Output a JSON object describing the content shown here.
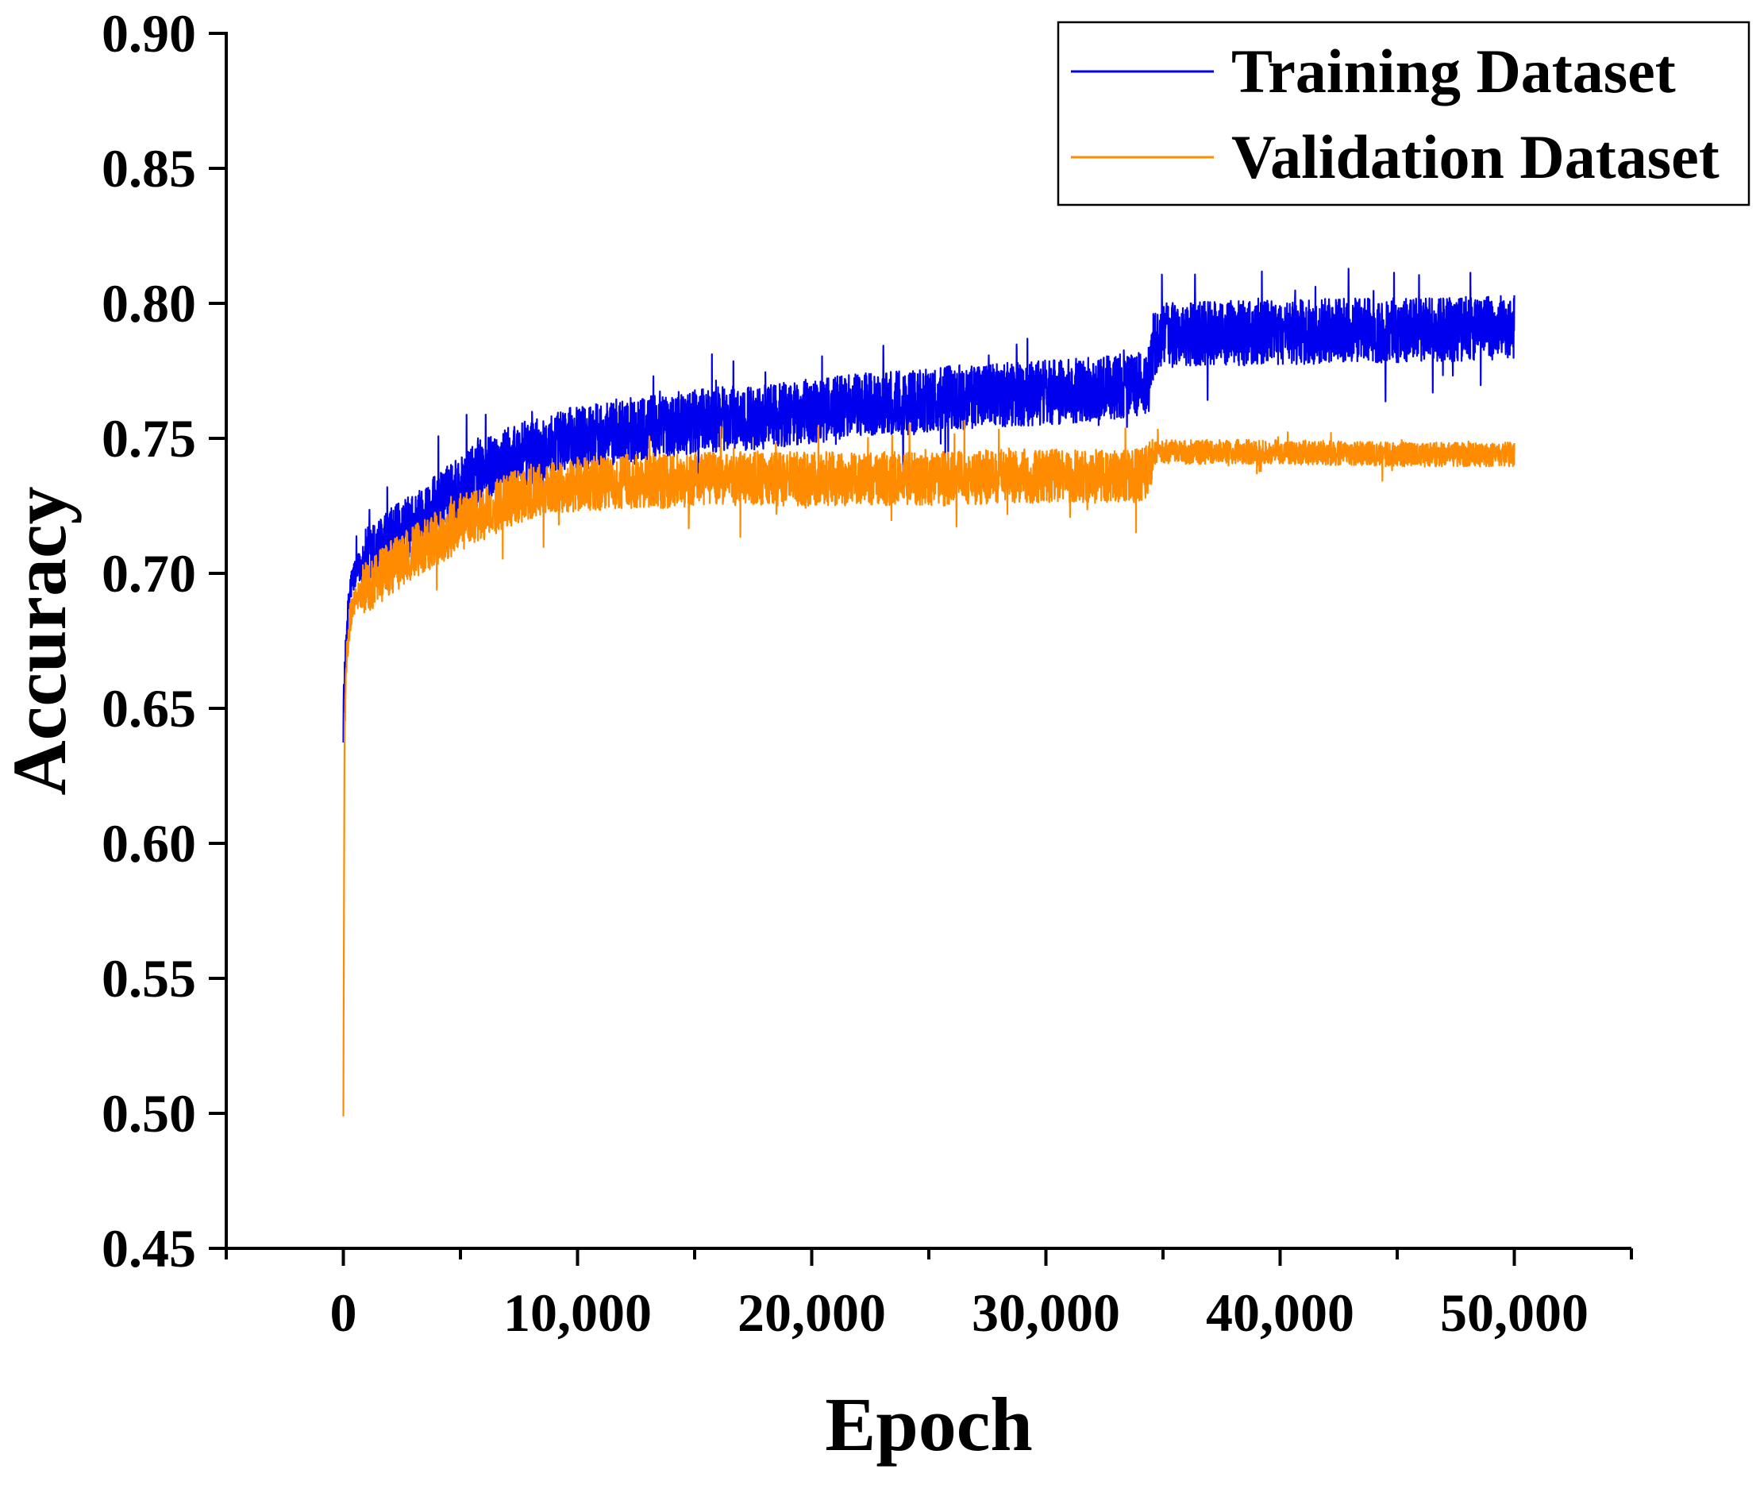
{
  "chart_data": {
    "type": "line",
    "title": "",
    "xlabel": "Epoch",
    "ylabel": "Accuracy",
    "xlim": [
      -5000,
      55000
    ],
    "ylim": [
      0.45,
      0.9
    ],
    "x_ticks": [
      0,
      10000,
      20000,
      30000,
      40000,
      50000
    ],
    "x_tick_labels": [
      "0",
      "10,000",
      "20,000",
      "30,000",
      "40,000",
      "50,000"
    ],
    "x_minor_ticks": [
      -5000,
      5000,
      15000,
      25000,
      35000,
      45000,
      55000
    ],
    "y_ticks": [
      0.45,
      0.5,
      0.55,
      0.6,
      0.65,
      0.7,
      0.75,
      0.8,
      0.85,
      0.9
    ],
    "y_tick_labels": [
      "0.45",
      "0.50",
      "0.55",
      "0.60",
      "0.65",
      "0.70",
      "0.75",
      "0.80",
      "0.85",
      "0.90"
    ],
    "grid": false,
    "legend_position": "top-right",
    "noisy_series": true,
    "series": [
      {
        "name": "Training Dataset",
        "color": "#0000ee",
        "x": [
          0,
          150,
          300,
          500,
          1000,
          2000,
          3000,
          4000,
          5000,
          6000,
          7000,
          8000,
          9000,
          10000,
          12000,
          14000,
          16000,
          18000,
          20000,
          22000,
          24000,
          26000,
          28000,
          30000,
          32000,
          34000,
          34400,
          34600,
          35000,
          37000,
          40000,
          43000,
          46000,
          49000,
          50000
        ],
        "values": [
          0.65,
          0.68,
          0.695,
          0.7,
          0.705,
          0.712,
          0.718,
          0.725,
          0.732,
          0.738,
          0.742,
          0.745,
          0.748,
          0.75,
          0.753,
          0.755,
          0.757,
          0.758,
          0.76,
          0.762,
          0.763,
          0.765,
          0.766,
          0.767,
          0.768,
          0.77,
          0.772,
          0.785,
          0.788,
          0.789,
          0.789,
          0.79,
          0.79,
          0.791,
          0.791
        ],
        "spread": 0.012
      },
      {
        "name": "Validation Dataset",
        "color": "#ff8c00",
        "x": [
          0,
          50,
          150,
          300,
          500,
          1000,
          2000,
          3000,
          4000,
          5000,
          6000,
          7000,
          8000,
          9000,
          10000,
          12000,
          14000,
          16000,
          18000,
          20000,
          22000,
          24000,
          26000,
          28000,
          30000,
          32000,
          34000,
          34400,
          34600,
          35000,
          40000,
          45000,
          50000
        ],
        "values": [
          0.503,
          0.64,
          0.67,
          0.685,
          0.69,
          0.695,
          0.702,
          0.708,
          0.713,
          0.718,
          0.722,
          0.727,
          0.73,
          0.732,
          0.733,
          0.734,
          0.734,
          0.735,
          0.735,
          0.735,
          0.735,
          0.735,
          0.735,
          0.736,
          0.736,
          0.736,
          0.736,
          0.738,
          0.745,
          0.745,
          0.745,
          0.744,
          0.744
        ],
        "spread": 0.01
      }
    ]
  }
}
